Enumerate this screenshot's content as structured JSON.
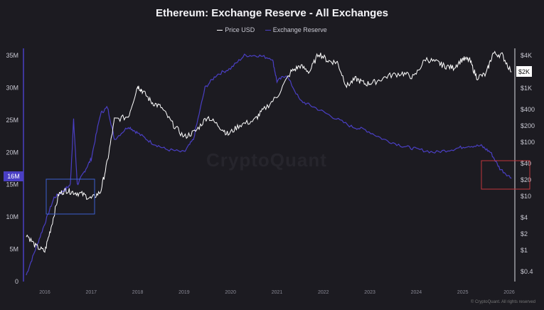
{
  "chart_data": {
    "type": "line",
    "title": "Ethereum: Exchange Reserve - All Exchanges",
    "legend": [
      "Price USD",
      "Exchange Reserve"
    ],
    "legend_placement": "top-center",
    "x_ticks": [
      "2016",
      "2017",
      "2018",
      "2019",
      "2020",
      "2021",
      "2022",
      "2023",
      "2024",
      "2025",
      "2026"
    ],
    "xlim": [
      2015.55,
      2026.1
    ],
    "y_left": {
      "label": "Exchange Reserve",
      "ticks": [
        "0",
        "5M",
        "10M",
        "15M",
        "20M",
        "25M",
        "30M",
        "35M"
      ],
      "tick_values": [
        0,
        5,
        10,
        15,
        20,
        25,
        30,
        35
      ],
      "ylim_millions": [
        0,
        35
      ],
      "current_label": "16M"
    },
    "y_right": {
      "label": "Price USD",
      "scale": "log",
      "ticks": [
        "$4K",
        "$2K",
        "$1K",
        "$400",
        "$200",
        "$100",
        "$40",
        "$20",
        "$10",
        "$4",
        "$2",
        "$1",
        "$0.4"
      ],
      "tick_values": [
        4000,
        2000,
        1000,
        400,
        200,
        100,
        40,
        20,
        10,
        4,
        2,
        1,
        0.4
      ],
      "current_label": "$2K"
    },
    "series": [
      {
        "name": "Price USD",
        "color": "#ffffff",
        "x": [
          2015.6,
          2015.8,
          2016.0,
          2016.15,
          2016.3,
          2016.45,
          2016.6,
          2016.8,
          2017.0,
          2017.2,
          2017.35,
          2017.5,
          2017.8,
          2018.0,
          2018.1,
          2018.3,
          2018.5,
          2018.75,
          2019.0,
          2019.25,
          2019.5,
          2019.75,
          2019.95,
          2020.2,
          2020.5,
          2020.7,
          2021.0,
          2021.3,
          2021.5,
          2021.7,
          2021.9,
          2022.1,
          2022.3,
          2022.5,
          2022.7,
          2022.9,
          2023.1,
          2023.4,
          2023.7,
          2023.95,
          2024.2,
          2024.45,
          2024.6,
          2024.8,
          2025.0,
          2025.15,
          2025.3,
          2025.5,
          2025.65,
          2025.85,
          2026.05
        ],
        "values": [
          2,
          1.2,
          0.95,
          3,
          11,
          13,
          12,
          11,
          9,
          12,
          45,
          260,
          300,
          1100,
          900,
          550,
          450,
          220,
          125,
          160,
          300,
          200,
          140,
          210,
          250,
          390,
          700,
          2000,
          2600,
          2000,
          4500,
          3200,
          3000,
          1100,
          1500,
          1200,
          1300,
          1700,
          1900,
          1600,
          3500,
          3000,
          2600,
          2400,
          3500,
          3300,
          1600,
          1800,
          4400,
          4100,
          2000
        ]
      },
      {
        "name": "Exchange Reserve",
        "color": "#4a3fc4",
        "units": "millions ETH",
        "x": [
          2015.6,
          2015.8,
          2016.0,
          2016.2,
          2016.4,
          2016.55,
          2016.62,
          2016.7,
          2016.85,
          2017.0,
          2017.2,
          2017.35,
          2017.5,
          2017.8,
          2018.0,
          2018.3,
          2018.6,
          2019.0,
          2019.2,
          2019.45,
          2019.7,
          2020.0,
          2020.3,
          2020.6,
          2020.9,
          2021.0,
          2021.2,
          2021.5,
          2021.8,
          2022.2,
          2022.6,
          2022.9,
          2023.3,
          2023.7,
          2024.0,
          2024.4,
          2024.8,
          2025.1,
          2025.4,
          2025.6,
          2025.8,
          2026.05
        ],
        "values": [
          1,
          5,
          9,
          13,
          14,
          15,
          25,
          15,
          17,
          19,
          26,
          27,
          22,
          24,
          23,
          21.5,
          20.5,
          20,
          22,
          30,
          32,
          33,
          35,
          35,
          34.5,
          31,
          32,
          28,
          27,
          25.5,
          24,
          23.5,
          22,
          21,
          20.5,
          20,
          20.5,
          21,
          21,
          20,
          17.5,
          16
        ]
      }
    ]
  },
  "footer": "© CryptoQuant. All rights reserved",
  "watermark": "CryptoQuant"
}
